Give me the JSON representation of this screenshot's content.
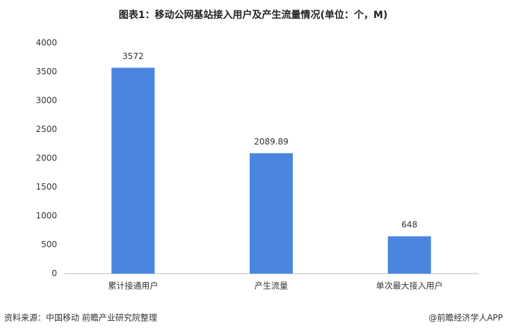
{
  "chart_data": {
    "type": "bar",
    "title": "图表1：移动公网基站接入用户及产生流量情况(单位：个，M)",
    "categories": [
      "累计接通用户",
      "产生流量",
      "单次最大接入用户"
    ],
    "values": [
      3572,
      2089.89,
      648
    ],
    "color": "#4a86e0",
    "ylim": [
      0,
      4000
    ],
    "yticks": [
      0,
      500,
      1000,
      1500,
      2000,
      2500,
      3000,
      3500,
      4000
    ],
    "grid": false,
    "source": "资料来源：中国移动 前瞻产业研究院整理",
    "credit": "@前瞻经济学人APP"
  }
}
